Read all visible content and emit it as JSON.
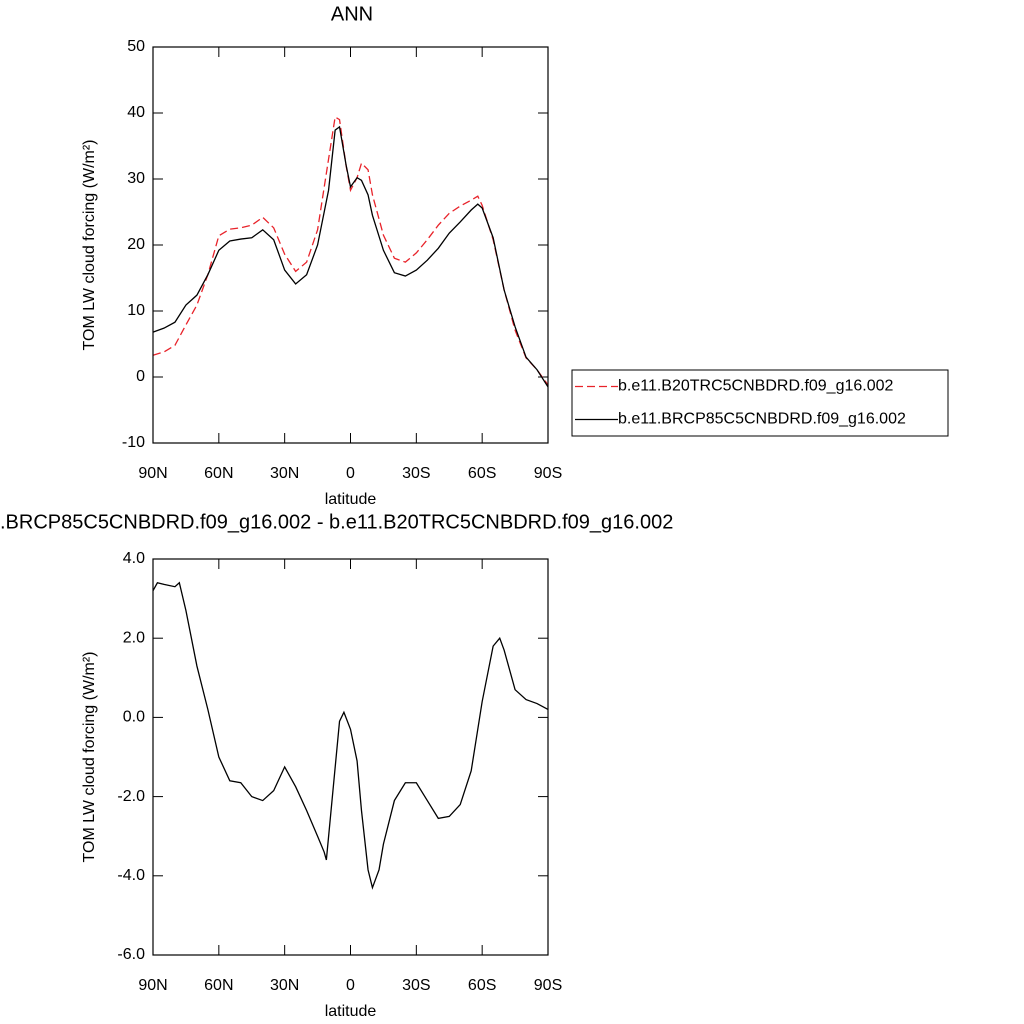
{
  "chart_data": [
    {
      "type": "line",
      "title": "ANN",
      "xlabel": "latitude",
      "ylabel": "TOM LW cloud forcing (W/m²)",
      "x": [
        90,
        85,
        80,
        75,
        70,
        65,
        60,
        55,
        50,
        45,
        40,
        35,
        30,
        25,
        20,
        15,
        10,
        7,
        5,
        2,
        0,
        -3,
        -5,
        -8,
        -10,
        -15,
        -20,
        -25,
        -30,
        -35,
        -40,
        -45,
        -50,
        -55,
        -58,
        -60,
        -65,
        -70,
        -75,
        -80,
        -85,
        -90
      ],
      "series": [
        {
          "name": "b.e11.B20TRC5CNBDRD.f09_g16.002",
          "color": "#e8232a",
          "dash": "dashed",
          "values": [
            3.3,
            3.8,
            4.8,
            7.9,
            10.9,
            15.5,
            21.4,
            22.4,
            22.6,
            23,
            24.2,
            22.6,
            18.6,
            16,
            17.4,
            22.3,
            33,
            39.4,
            39,
            32,
            28.3,
            30.2,
            32.4,
            31.4,
            27.6,
            21.5,
            18,
            17.4,
            18.8,
            20.8,
            23,
            24.8,
            25.9,
            26.8,
            27.4,
            26,
            20.8,
            13.2,
            7.1,
            2.9,
            1.1,
            -1.2
          ]
        },
        {
          "name": "b.e11.BRCP85C5CNBDRD.f09_g16.002",
          "color": "#000000",
          "dash": "solid",
          "values": [
            6.8,
            7.4,
            8.3,
            10.9,
            12.4,
            15.5,
            19.2,
            20.6,
            20.9,
            21.1,
            22.3,
            20.8,
            16.2,
            14.1,
            15.5,
            20,
            28.3,
            37.4,
            37.9,
            32.1,
            28.8,
            30.2,
            29.8,
            27.6,
            24.5,
            19.2,
            15.8,
            15.3,
            16.2,
            17.7,
            19.5,
            21.8,
            23.5,
            25.3,
            26.2,
            25.6,
            21.1,
            13.2,
            7.6,
            3,
            1.1,
            -1.5
          ]
        }
      ],
      "xlim": [
        90,
        -90
      ],
      "xticks": [
        {
          "value": 90,
          "label": "90N"
        },
        {
          "value": 60,
          "label": "60N"
        },
        {
          "value": 30,
          "label": "30N"
        },
        0,
        {
          "value": -30,
          "label": "30S"
        },
        {
          "value": -60,
          "label": "60S"
        },
        {
          "value": -90,
          "label": "90S"
        }
      ],
      "ylim": [
        -10,
        50
      ],
      "yticks": [
        -10,
        0,
        10,
        20,
        30,
        40,
        50
      ],
      "legend": "right"
    },
    {
      "type": "line",
      "title": ".BRCP85C5CNBDRD.f09_g16.002 - b.e11.B20TRC5CNBDRD.f09_g16.002",
      "xlabel": "latitude",
      "ylabel": "TOM LW cloud forcing (W/m²)",
      "x": [
        90,
        88,
        85,
        80,
        78,
        75,
        70,
        65,
        60,
        55,
        50,
        45,
        40,
        35,
        30,
        25,
        20,
        15,
        12,
        11,
        8,
        5,
        3,
        0,
        -3,
        -5,
        -8,
        -10,
        -13,
        -15,
        -20,
        -25,
        -30,
        -35,
        -40,
        -45,
        -50,
        -55,
        -60,
        -65,
        -68,
        -70,
        -75,
        -80,
        -85,
        -90
      ],
      "values": [
        3.2,
        3.4,
        3.36,
        3.3,
        3.4,
        2.7,
        1.3,
        0.2,
        -1.0,
        -1.6,
        -1.65,
        -2.0,
        -2.1,
        -1.85,
        -1.25,
        -1.75,
        -2.35,
        -3.0,
        -3.4,
        -3.6,
        -1.85,
        -0.1,
        0.13,
        -0.3,
        -1.1,
        -2.35,
        -3.85,
        -4.3,
        -3.85,
        -3.2,
        -2.1,
        -1.65,
        -1.65,
        -2.1,
        -2.55,
        -2.5,
        -2.2,
        -1.35,
        0.4,
        1.8,
        2.0,
        1.7,
        0.7,
        0.45,
        0.35,
        0.2
      ],
      "color": "#000000",
      "xlim": [
        90,
        -90
      ],
      "xticks": [
        {
          "value": 90,
          "label": "90N"
        },
        {
          "value": 60,
          "label": "60N"
        },
        {
          "value": 30,
          "label": "30N"
        },
        0,
        {
          "value": -30,
          "label": "30S"
        },
        {
          "value": -60,
          "label": "60S"
        },
        {
          "value": -90,
          "label": "90S"
        }
      ],
      "ylim": [
        -6,
        4
      ],
      "yticks": [
        {
          "value": -6,
          "label": "-6.0"
        },
        {
          "value": -4,
          "label": "-4.0"
        },
        {
          "value": -2,
          "label": "-2.0"
        },
        {
          "value": 0,
          "label": "0.0"
        },
        {
          "value": 2,
          "label": "2.0"
        },
        {
          "value": 4,
          "label": "4.0"
        }
      ]
    }
  ]
}
